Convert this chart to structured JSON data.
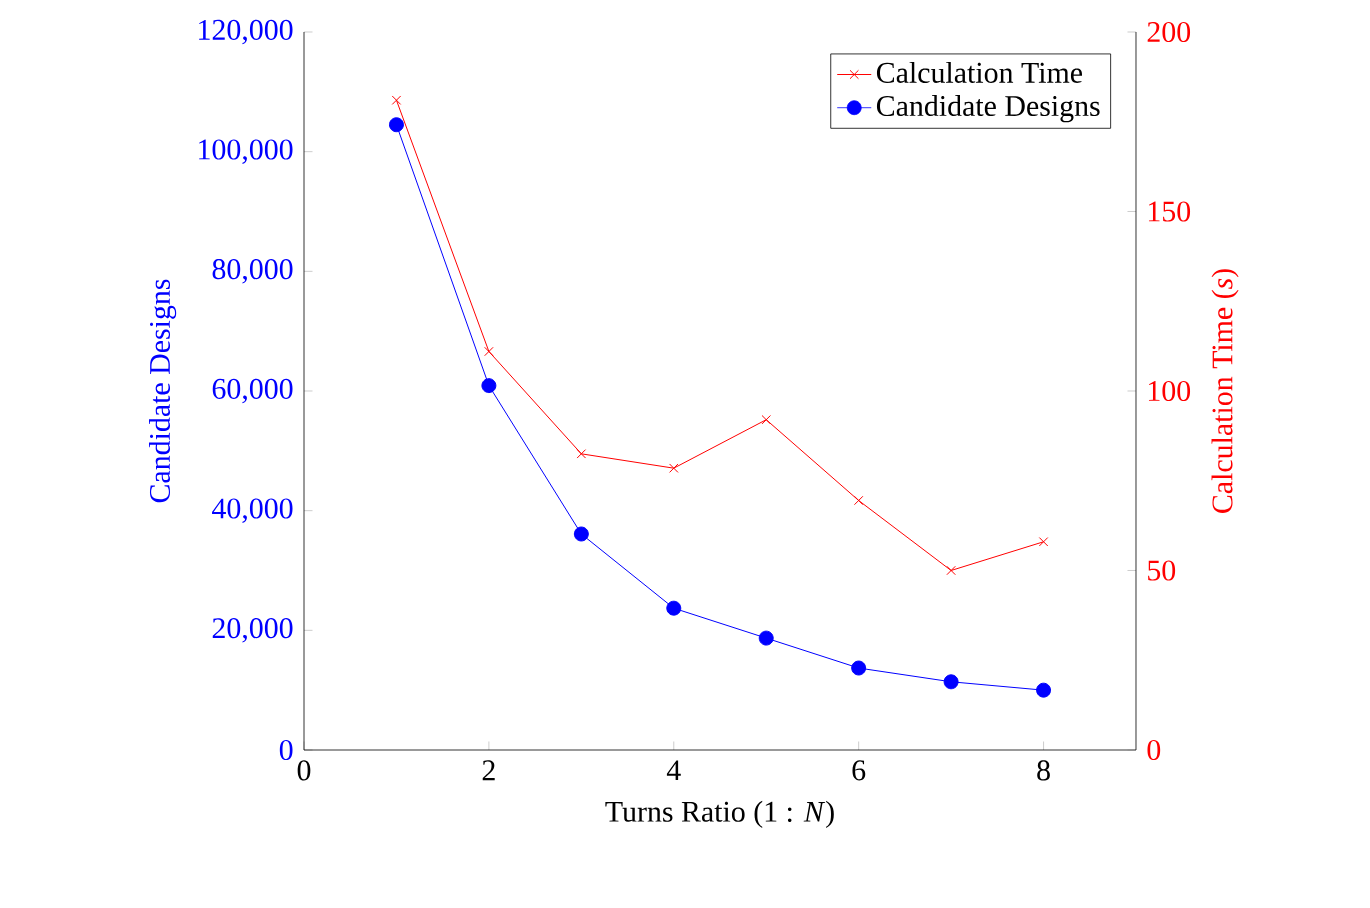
{
  "chart_data": {
    "type": "line",
    "xlabel": "Turns Ratio (1 : *N*)",
    "ylabel": "Candidate Designs",
    "y2label": "Calculation Time (*s*)",
    "x": [
      1,
      2,
      3,
      4,
      5,
      6,
      7,
      8
    ],
    "series": [
      {
        "name": "Calculation Time",
        "color": "#ff0000",
        "axis": "y2",
        "marker": "cross",
        "values": [
          181,
          111,
          82.5,
          78.5,
          92,
          69.5,
          50,
          58
        ]
      },
      {
        "name": "Candidate Designs",
        "color": "#0000ff",
        "marker": "circle",
        "values": [
          104500,
          60900,
          36100,
          23700,
          18700,
          13700,
          11400,
          10000
        ]
      }
    ],
    "xlim": [
      0,
      9
    ],
    "xticks": [
      0,
      2,
      4,
      6,
      8
    ],
    "ylim": [
      0,
      120000
    ],
    "yticks": [
      {
        "value": 0,
        "label": "0"
      },
      {
        "value": 20000,
        "label": "20,000"
      },
      {
        "value": 40000,
        "label": "40,000"
      },
      {
        "value": 60000,
        "label": "60,000"
      },
      {
        "value": 80000,
        "label": "80,000"
      },
      {
        "value": 100000,
        "label": "100,000"
      },
      {
        "value": 120000,
        "label": "120,000"
      }
    ],
    "y2lim": [
      0,
      200
    ],
    "y2ticks": [
      0,
      50,
      100,
      150,
      200
    ],
    "legend": "top right",
    "grid": false,
    "line_style": "solid"
  }
}
